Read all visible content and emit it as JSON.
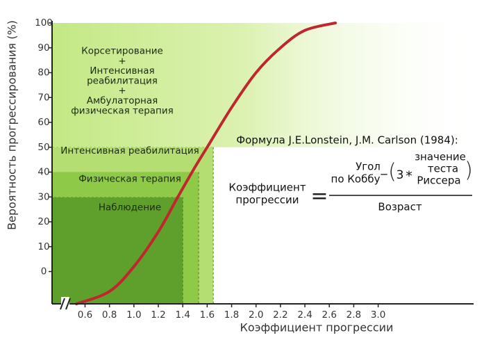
{
  "chart_data": {
    "type": "line",
    "ylabel": "Вероятность прогрессирования (%)",
    "xlabel": "Коэффициент прогрессии",
    "xlim": [
      0.33,
      3.77
    ],
    "ylim": [
      -13,
      100
    ],
    "xticks": [
      0.6,
      0.8,
      {
        "value": 1,
        "label": "1.0"
      },
      1.2,
      1.4,
      1.6,
      1.8,
      {
        "value": 2,
        "label": "2.0"
      },
      2.2,
      2.4,
      2.6,
      2.8,
      {
        "value": 3,
        "label": "3.0"
      }
    ],
    "yticks": [
      0,
      10,
      20,
      30,
      40,
      50,
      60,
      70,
      80,
      90,
      100
    ],
    "x": [
      0.53,
      0.8,
      1.0,
      1.2,
      1.36,
      1.5,
      1.6,
      1.8,
      2.0,
      2.2,
      2.4,
      2.65
    ],
    "values": [
      -13,
      -8,
      2,
      16,
      30,
      42,
      50,
      66,
      80,
      90,
      97,
      100
    ],
    "color": "#c0262d",
    "zones": [
      {
        "label": [
          "Корсетирование",
          "+",
          "Интенсивная",
          "реабилитация",
          "+",
          "Амбулаторная",
          "физическая терапия"
        ],
        "ymin": 50,
        "ymax": 100,
        "color": "#c3e884"
      },
      {
        "label": [
          "Интенсивная реабилитация"
        ],
        "xmax": 1.65,
        "ymax": 50,
        "color": "#b4dd72"
      },
      {
        "label": [
          "Физическая терапия"
        ],
        "xmax": 1.53,
        "ymax": 40,
        "color": "#8ec948"
      },
      {
        "label": [
          "Наблюдение"
        ],
        "xmax": 1.4,
        "ymax": 30,
        "color": "#5f9f2c"
      }
    ],
    "formula": {
      "title": "Формула J.E.Lonstein, J.M. Carlson (1984):",
      "lhs": [
        "Коэффициент",
        "прогрессии"
      ],
      "equals": "=",
      "numerator_a": [
        "Угол",
        "по Коббу"
      ],
      "minus": "−",
      "factor": "3",
      "times": "*",
      "numerator_b": [
        "значение",
        "теста",
        "Риссера"
      ],
      "denominator": "Возраст"
    }
  }
}
